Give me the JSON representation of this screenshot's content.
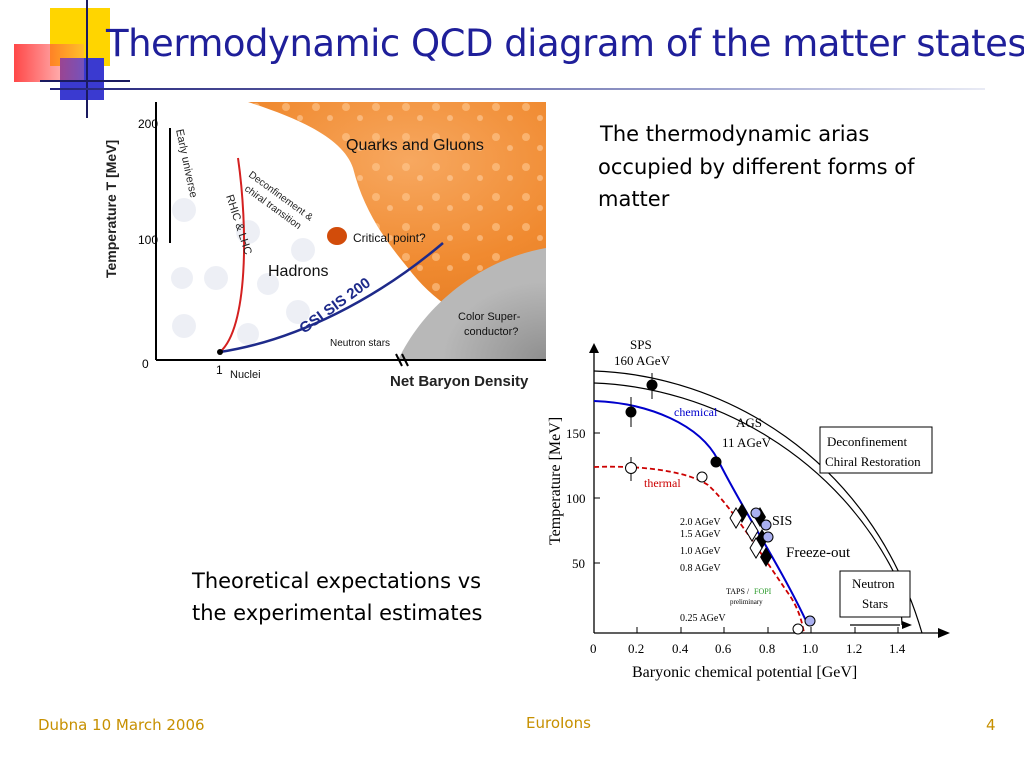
{
  "slide": {
    "title": "Thermodynamic QCD diagram of the matter states",
    "description_lines": [
      "The  thermodynamic arias",
      "occupied by different forms of",
      "matter"
    ],
    "caption_lines": [
      "Theoretical expectations vs",
      "the experimental estimates"
    ],
    "footer_left": "Dubna 10 March 2006",
    "footer_center": "EuroIons",
    "page_number": "4"
  },
  "phase_diagram": {
    "y_axis_label": "Temperature T [MeV]",
    "y_ticks": [
      "200",
      "100",
      "0"
    ],
    "x_tick": "1",
    "x_axis_label": "Net Baryon Density",
    "regions": {
      "quarks_gluons": "Quarks and Gluons",
      "hadrons": "Hadrons",
      "color_superconductor_lines": [
        "Color Super-",
        "conductor?"
      ],
      "neutron_stars": "Neutron stars",
      "nuclei": "Nuclei"
    },
    "annotations": {
      "early_universe": "Early universe",
      "rhic_lhc": "RHIC & LHC",
      "deconfinement_lines": [
        "Deconfinement &",
        "chiral transition"
      ],
      "critical_point": "Critical point?",
      "gsi": "GSI SIS 200"
    }
  },
  "freezeout_chart": {
    "x_axis_label": "Baryonic chemical potential [GeV]",
    "y_axis_label": "Temperature [MeV]",
    "x_ticks": [
      "0",
      "0.2",
      "0.4",
      "0.6",
      "0.8",
      "1.0",
      "1.2",
      "1.4"
    ],
    "y_ticks": [
      "150",
      "100",
      "50"
    ],
    "labels": {
      "sps_1": "SPS",
      "sps_2": "160 AGeV",
      "ags_1": "AGS",
      "ags_2": "11 AGeV",
      "chemical": "chemical",
      "thermal": "thermal",
      "sis": "SIS",
      "freeze_out": "Freeze-out",
      "deconf_1": "Deconfinement",
      "deconf_2": "Chiral Restoration",
      "neutron_1": "Neutron",
      "neutron_2": "Stars",
      "e20": "2.0 AGeV",
      "e15": "1.5 AGeV",
      "e10": "1.0 AGeV",
      "e08": "0.8 AGeV",
      "e025": "0.25 AGeV",
      "taps": "TAPS /",
      "fopi": "FOPI",
      "preliminary": "preliminary"
    },
    "colors": {
      "chemical": "#0000cc",
      "thermal": "#cc0000",
      "fopi": "#2a9a2a"
    }
  }
}
